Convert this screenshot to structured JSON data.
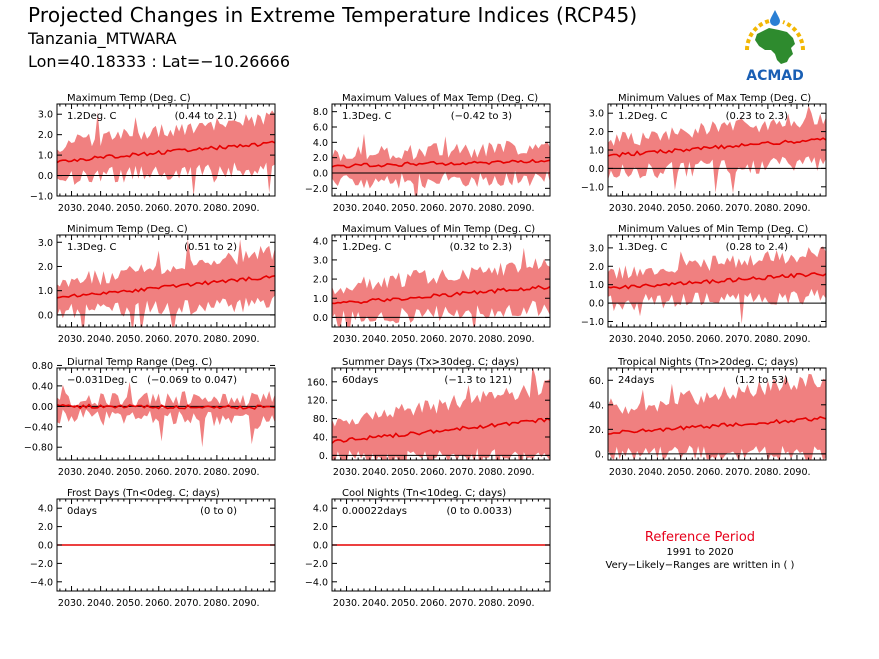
{
  "header": {
    "title": "Projected Changes in Extreme Temperature Indices (RCP45)",
    "region": "Tanzania_MTWARA",
    "coords": "Lon=40.18333 : Lat=−10.26666"
  },
  "logo": {
    "label": "ACMAD",
    "icon": "africa-map-logo"
  },
  "reference": {
    "title": "Reference Period",
    "years": "1991 to 2020",
    "note": "Very−Likely−Ranges are written in ( )"
  },
  "colors": {
    "band": "#f08080",
    "line": "#e60000",
    "zero": "#000000",
    "ref_title": "#e6001a"
  },
  "chart_data": [
    {
      "id": "txx_mean",
      "type": "area",
      "title": "Maximum Temp (Deg. C)",
      "value": "1.2Deg. C",
      "range": "(0.44 to 2.1)",
      "ylim": [
        -1.0,
        3.5
      ],
      "yticks": [
        "−1.0",
        "0.0",
        "1.0",
        "2.0",
        "3.0"
      ],
      "ytick_values": [
        -1,
        0,
        1,
        2,
        3
      ],
      "mean_start": 0.7,
      "mean_end": 1.6,
      "band_lo_start": -0.1,
      "band_lo_end": 0.4,
      "band_hi_start": 1.5,
      "band_hi_end": 2.8,
      "xticks": [
        "2030.",
        "2040.",
        "2050.",
        "2060.",
        "2070.",
        "2080.",
        "2090."
      ]
    },
    {
      "id": "txx",
      "type": "area",
      "title": "Maximum Values of Max Temp (Deg. C)",
      "value": "1.3Deg. C",
      "range": "(−0.42 to 3)",
      "ylim": [
        -3.0,
        9.0
      ],
      "yticks": [
        "−2.0",
        "0.0",
        "2.0",
        "4.0",
        "6.0",
        "8.0"
      ],
      "ytick_values": [
        -2,
        0,
        2,
        4,
        6,
        8
      ],
      "mean_start": 0.9,
      "mean_end": 1.6,
      "band_lo_start": -1.2,
      "band_lo_end": -0.6,
      "band_hi_start": 2.4,
      "band_hi_end": 3.3,
      "xticks": [
        "2030.",
        "2040.",
        "2050.",
        "2060.",
        "2070.",
        "2080.",
        "2090."
      ]
    },
    {
      "id": "txn",
      "type": "area",
      "title": "Minimum Values of Max Temp (Deg. C)",
      "value": "1.2Deg. C",
      "range": "(0.23 to 2.3)",
      "ylim": [
        -1.5,
        3.5
      ],
      "yticks": [
        "−1.0",
        "0.0",
        "1.0",
        "2.0",
        "3.0"
      ],
      "ytick_values": [
        -1,
        0,
        1,
        2,
        3
      ],
      "mean_start": 0.7,
      "mean_end": 1.6,
      "band_lo_start": -0.2,
      "band_lo_end": 0.3,
      "band_hi_start": 1.5,
      "band_hi_end": 2.8,
      "xticks": [
        "2030.",
        "2040.",
        "2050.",
        "2060.",
        "2070.",
        "2080.",
        "2090."
      ]
    },
    {
      "id": "tn_mean",
      "type": "area",
      "title": "Minimum Temp (Deg. C)",
      "value": "1.3Deg. C",
      "range": "(0.51 to 2)",
      "ylim": [
        -0.5,
        3.3
      ],
      "yticks": [
        "0.0",
        "1.0",
        "2.0",
        "3.0"
      ],
      "ytick_values": [
        0,
        1,
        2,
        3
      ],
      "mean_start": 0.7,
      "mean_end": 1.6,
      "band_lo_start": 0.1,
      "band_lo_end": 0.5,
      "band_hi_start": 1.3,
      "band_hi_end": 2.6,
      "xticks": [
        "2030.",
        "2040.",
        "2050.",
        "2060.",
        "2070.",
        "2080.",
        "2090."
      ]
    },
    {
      "id": "tnx",
      "type": "area",
      "title": "Maximum Values of Min Temp (Deg. C)",
      "value": "1.2Deg. C",
      "range": "(0.32 to 2.3)",
      "ylim": [
        -0.5,
        4.3
      ],
      "yticks": [
        "0.0",
        "1.0",
        "2.0",
        "3.0",
        "4.0"
      ],
      "ytick_values": [
        0,
        1,
        2,
        3,
        4
      ],
      "mean_start": 0.7,
      "mean_end": 1.6,
      "band_lo_start": -0.1,
      "band_lo_end": 0.5,
      "band_hi_start": 1.6,
      "band_hi_end": 2.8,
      "xticks": [
        "2030.",
        "2040.",
        "2050.",
        "2060.",
        "2070.",
        "2080.",
        "2090."
      ]
    },
    {
      "id": "tnn",
      "type": "area",
      "title": "Minimum Values of Min Temp (Deg. C)",
      "value": "1.3Deg. C",
      "range": "(0.28 to 2.4)",
      "ylim": [
        -1.3,
        3.7
      ],
      "yticks": [
        "−1.0",
        "0.0",
        "1.0",
        "2.0",
        "3.0"
      ],
      "ytick_values": [
        -1,
        0,
        1,
        2,
        3
      ],
      "mean_start": 0.8,
      "mean_end": 1.6,
      "band_lo_start": 0.0,
      "band_lo_end": 0.4,
      "band_hi_start": 1.6,
      "band_hi_end": 2.7,
      "xticks": [
        "2030.",
        "2040.",
        "2050.",
        "2060.",
        "2070.",
        "2080.",
        "2090."
      ]
    },
    {
      "id": "dtr",
      "type": "area",
      "title": "Diurnal Temp Range (Deg. C)",
      "value": "−0.031Deg. C",
      "range": "(−0.069 to 0.047)",
      "ylim": [
        -1.05,
        0.75
      ],
      "yticks": [
        "−0.80",
        "−0.40",
        "0.00",
        "0.40",
        "0.80"
      ],
      "ytick_values": [
        -0.8,
        -0.4,
        0,
        0.4,
        0.8
      ],
      "mean_start": 0.0,
      "mean_end": -0.02,
      "band_lo_start": -0.2,
      "band_lo_end": -0.3,
      "band_hi_start": 0.12,
      "band_hi_end": 0.15,
      "xticks": [
        "2030.",
        "2040.",
        "2050.",
        "2060.",
        "2070.",
        "2080.",
        "2090."
      ]
    },
    {
      "id": "su",
      "type": "area",
      "title": "Summer Days (Tx>30deg. C; days)",
      "value": "60days",
      "range": "(−1.3 to 121)",
      "ylim": [
        -10,
        190
      ],
      "yticks": [
        "0.",
        "40.",
        "80.",
        "120.",
        "160."
      ],
      "ytick_values": [
        0,
        40,
        80,
        120,
        160
      ],
      "mean_start": 30,
      "mean_end": 78,
      "band_lo_start": -5,
      "band_lo_end": 5,
      "band_hi_start": 70,
      "band_hi_end": 150,
      "xticks": [
        "2030.",
        "2040.",
        "2050.",
        "2060.",
        "2070.",
        "2080.",
        "2090."
      ]
    },
    {
      "id": "tr",
      "type": "area",
      "title": "Tropical Nights (Tn>20deg. C; days)",
      "value": "24days",
      "range": "(1.2 to 53)",
      "ylim": [
        -5,
        70
      ],
      "yticks": [
        "0.",
        "20.",
        "40.",
        "60."
      ],
      "ytick_values": [
        0,
        20,
        40,
        60
      ],
      "mean_start": 17,
      "mean_end": 29,
      "band_lo_start": 0,
      "band_lo_end": 1,
      "band_hi_start": 35,
      "band_hi_end": 62,
      "xticks": [
        "2030.",
        "2040.",
        "2050.",
        "2060.",
        "2070.",
        "2080.",
        "2090."
      ]
    },
    {
      "id": "fd",
      "type": "area",
      "title": "Frost Days (Tn<0deg. C; days)",
      "value": "0days",
      "range": "(0 to 0)",
      "ylim": [
        -5.0,
        5.0
      ],
      "yticks": [
        "−4.0",
        "−2.0",
        "0.0",
        "2.0",
        "4.0"
      ],
      "ytick_values": [
        -4,
        -2,
        0,
        2,
        4
      ],
      "mean_start": 0,
      "mean_end": 0,
      "band_lo_start": 0,
      "band_lo_end": 0,
      "band_hi_start": 0,
      "band_hi_end": 0,
      "xticks": [
        "2030.",
        "2040.",
        "2050.",
        "2060.",
        "2070.",
        "2080.",
        "2090."
      ]
    },
    {
      "id": "cn",
      "type": "area",
      "title": "Cool Nights (Tn<10deg. C; days)",
      "value": "0.00022days",
      "range": "(0 to 0.0033)",
      "ylim": [
        -5.0,
        5.0
      ],
      "yticks": [
        "−4.0",
        "−2.0",
        "0.0",
        "2.0",
        "4.0"
      ],
      "ytick_values": [
        -4,
        -2,
        0,
        2,
        4
      ],
      "mean_start": 0,
      "mean_end": 0,
      "band_lo_start": 0,
      "band_lo_end": 0,
      "band_hi_start": 0,
      "band_hi_end": 0,
      "xticks": [
        "2030.",
        "2040.",
        "2050.",
        "2060.",
        "2070.",
        "2080.",
        "2090."
      ]
    }
  ]
}
